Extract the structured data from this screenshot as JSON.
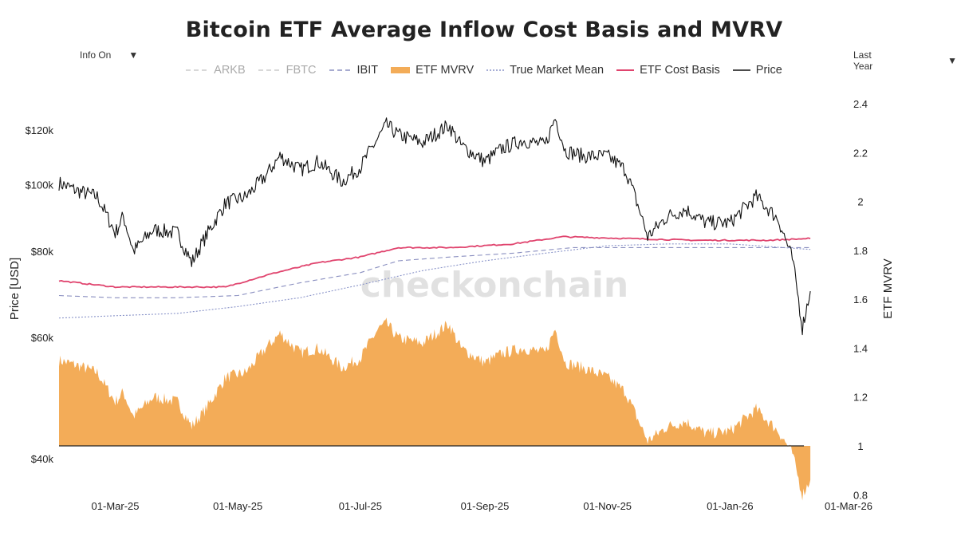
{
  "header": {
    "title": "Bitcoin ETF Average Inflow Cost Basis and MVRV",
    "info_label": "Info On",
    "range_label": "Last Year",
    "caret": "▼",
    "watermark": "checkonchain"
  },
  "colors": {
    "price": "#111111",
    "etf_cost_basis": "#e0446e",
    "true_market_mean": "#8a94c9",
    "ibit": "#8a8fc0",
    "fbtc": "#cccccc",
    "arkb": "#cccccc",
    "etf_mvrv": "#f3ac58"
  },
  "chart_data": {
    "type": "line",
    "title": "Bitcoin ETF Average Inflow Cost Basis and MVRV",
    "ylabel": "Price [USD]",
    "y2label": "ETF MVRV",
    "xlim": [
      "2025-02-01",
      "2026-03-01"
    ],
    "ylim": [
      30000,
      140000
    ],
    "y_scale": "log",
    "y2lim": [
      0.8,
      2.45
    ],
    "x_ticks": [
      "01-Mar-25",
      "01-May-25",
      "01-Jul-25",
      "01-Sep-25",
      "01-Nov-25",
      "01-Jan-26",
      "01-Mar-26"
    ],
    "y_ticks": [
      "$40k",
      "$60k",
      "$80k",
      "$100k",
      "$120k"
    ],
    "y_tick_values": [
      40000,
      60000,
      80000,
      100000,
      120000
    ],
    "y2_ticks": [
      "0.8",
      "1",
      "1.2",
      "1.4",
      "1.6",
      "1.8",
      "2",
      "2.2",
      "2.4"
    ],
    "y2_tick_values": [
      0.8,
      1.0,
      1.2,
      1.4,
      1.6,
      1.8,
      2.0,
      2.2,
      2.4
    ],
    "grid": false,
    "legend_position": "top",
    "legend": [
      "ARKB",
      "FBTC",
      "IBIT",
      "ETF MVRV",
      "True Market Mean",
      "ETF Cost Basis",
      "Price"
    ],
    "series": [
      {
        "name": "Price",
        "axis": "y",
        "style": "line",
        "x": [
          "2025-02-01",
          "2025-02-10",
          "2025-02-20",
          "2025-03-01",
          "2025-03-05",
          "2025-03-10",
          "2025-03-20",
          "2025-04-01",
          "2025-04-08",
          "2025-04-15",
          "2025-04-25",
          "2025-05-05",
          "2025-05-15",
          "2025-05-22",
          "2025-06-01",
          "2025-06-10",
          "2025-06-22",
          "2025-07-01",
          "2025-07-10",
          "2025-07-14",
          "2025-07-20",
          "2025-08-01",
          "2025-08-14",
          "2025-08-20",
          "2025-09-01",
          "2025-09-10",
          "2025-09-20",
          "2025-10-01",
          "2025-10-06",
          "2025-10-11",
          "2025-10-20",
          "2025-11-01",
          "2025-11-10",
          "2025-11-21",
          "2025-12-01",
          "2025-12-10",
          "2025-12-20",
          "2026-01-01",
          "2026-01-14",
          "2026-01-25",
          "2026-02-01",
          "2026-02-06",
          "2026-02-10"
        ],
        "values": [
          100500,
          98000,
          96000,
          85000,
          90000,
          80000,
          86000,
          85000,
          77000,
          84000,
          94000,
          96000,
          103000,
          110000,
          105000,
          108000,
          101000,
          106000,
          117000,
          122000,
          118000,
          115000,
          122000,
          114000,
          108000,
          113000,
          116000,
          114000,
          125000,
          112000,
          110000,
          110000,
          105000,
          84000,
          90000,
          92000,
          88000,
          88000,
          96000,
          89000,
          78000,
          62000,
          70000
        ]
      },
      {
        "name": "ETF Cost Basis",
        "axis": "y",
        "style": "line",
        "x": [
          "2025-02-01",
          "2025-03-01",
          "2025-04-01",
          "2025-04-25",
          "2025-05-20",
          "2025-06-10",
          "2025-07-01",
          "2025-07-20",
          "2025-08-15",
          "2025-09-15",
          "2025-10-10",
          "2025-11-10",
          "2025-12-15",
          "2026-01-20",
          "2026-02-10"
        ],
        "values": [
          72500,
          71000,
          71000,
          71000,
          74500,
          77000,
          78500,
          81000,
          81000,
          82000,
          84000,
          83500,
          83000,
          83000,
          83500
        ]
      },
      {
        "name": "True Market Mean",
        "axis": "y",
        "style": "dotted",
        "x": [
          "2025-02-01",
          "2025-03-01",
          "2025-04-01",
          "2025-05-01",
          "2025-06-01",
          "2025-07-01",
          "2025-08-01",
          "2025-09-01",
          "2025-10-01",
          "2025-11-01",
          "2025-12-01",
          "2026-01-01",
          "2026-02-10"
        ],
        "values": [
          64000,
          64500,
          65000,
          66500,
          68500,
          71500,
          75000,
          77500,
          79500,
          81500,
          82000,
          82000,
          80500
        ]
      },
      {
        "name": "IBIT",
        "axis": "y",
        "style": "dashed",
        "x": [
          "2025-02-01",
          "2025-03-01",
          "2025-04-01",
          "2025-05-01",
          "2025-06-01",
          "2025-07-01",
          "2025-07-20",
          "2025-08-15",
          "2025-09-15",
          "2025-10-15",
          "2025-11-10",
          "2025-12-15",
          "2026-01-20",
          "2026-02-10"
        ],
        "values": [
          69000,
          68500,
          68500,
          69000,
          72000,
          74500,
          77500,
          78500,
          79500,
          81000,
          81000,
          81000,
          81000,
          81000
        ]
      },
      {
        "name": "ETF MVRV",
        "axis": "y2",
        "style": "area",
        "x": [
          "2025-02-01",
          "2025-02-10",
          "2025-02-20",
          "2025-03-01",
          "2025-03-05",
          "2025-03-10",
          "2025-03-20",
          "2025-04-01",
          "2025-04-08",
          "2025-04-15",
          "2025-04-25",
          "2025-05-05",
          "2025-05-15",
          "2025-05-22",
          "2025-06-01",
          "2025-06-10",
          "2025-06-22",
          "2025-07-01",
          "2025-07-10",
          "2025-07-14",
          "2025-07-20",
          "2025-08-01",
          "2025-08-14",
          "2025-08-20",
          "2025-09-01",
          "2025-09-10",
          "2025-09-20",
          "2025-10-01",
          "2025-10-06",
          "2025-10-11",
          "2025-10-20",
          "2025-11-01",
          "2025-11-10",
          "2025-11-21",
          "2025-12-01",
          "2025-12-10",
          "2025-12-20",
          "2026-01-01",
          "2026-01-14",
          "2026-01-25",
          "2026-02-01",
          "2026-02-06",
          "2026-02-10"
        ],
        "values": [
          1.35,
          1.33,
          1.3,
          1.18,
          1.22,
          1.12,
          1.2,
          1.18,
          1.08,
          1.15,
          1.28,
          1.3,
          1.4,
          1.46,
          1.38,
          1.4,
          1.32,
          1.36,
          1.48,
          1.5,
          1.44,
          1.42,
          1.5,
          1.4,
          1.34,
          1.38,
          1.4,
          1.38,
          1.48,
          1.34,
          1.32,
          1.28,
          1.22,
          1.02,
          1.08,
          1.1,
          1.05,
          1.06,
          1.15,
          1.06,
          0.97,
          0.8,
          0.86
        ]
      }
    ]
  }
}
